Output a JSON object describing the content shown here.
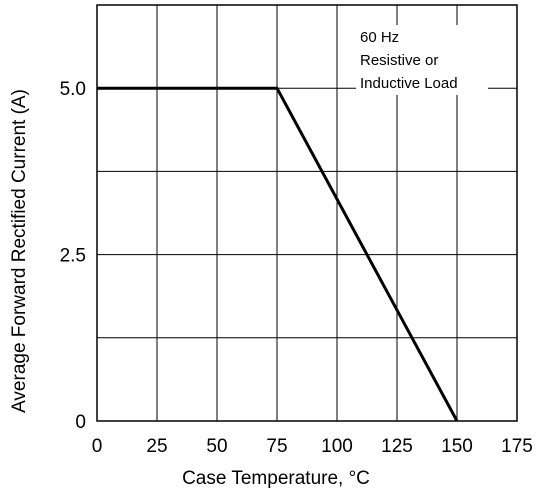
{
  "chart_data": {
    "type": "line",
    "xlabel": "Case Temperature, °C",
    "ylabel": "Average Forward Rectified Current (A)",
    "xlim": [
      0,
      175
    ],
    "ylim": [
      0,
      6.25
    ],
    "x_ticks": [
      "0",
      "25",
      "50",
      "75",
      "100",
      "125",
      "150",
      "175"
    ],
    "y_ticks": [
      {
        "label": "0",
        "value": 0
      },
      {
        "label": "2.5",
        "value": 2.5
      },
      {
        "label": "5.0",
        "value": 5.0
      }
    ],
    "grid": true,
    "series": [
      {
        "x": [
          0,
          75,
          150
        ],
        "y": [
          5.0,
          5.0,
          0
        ],
        "color": "#000000"
      }
    ],
    "annotation": [
      "60 Hz",
      "Resistive or",
      "Inductive Load"
    ]
  }
}
